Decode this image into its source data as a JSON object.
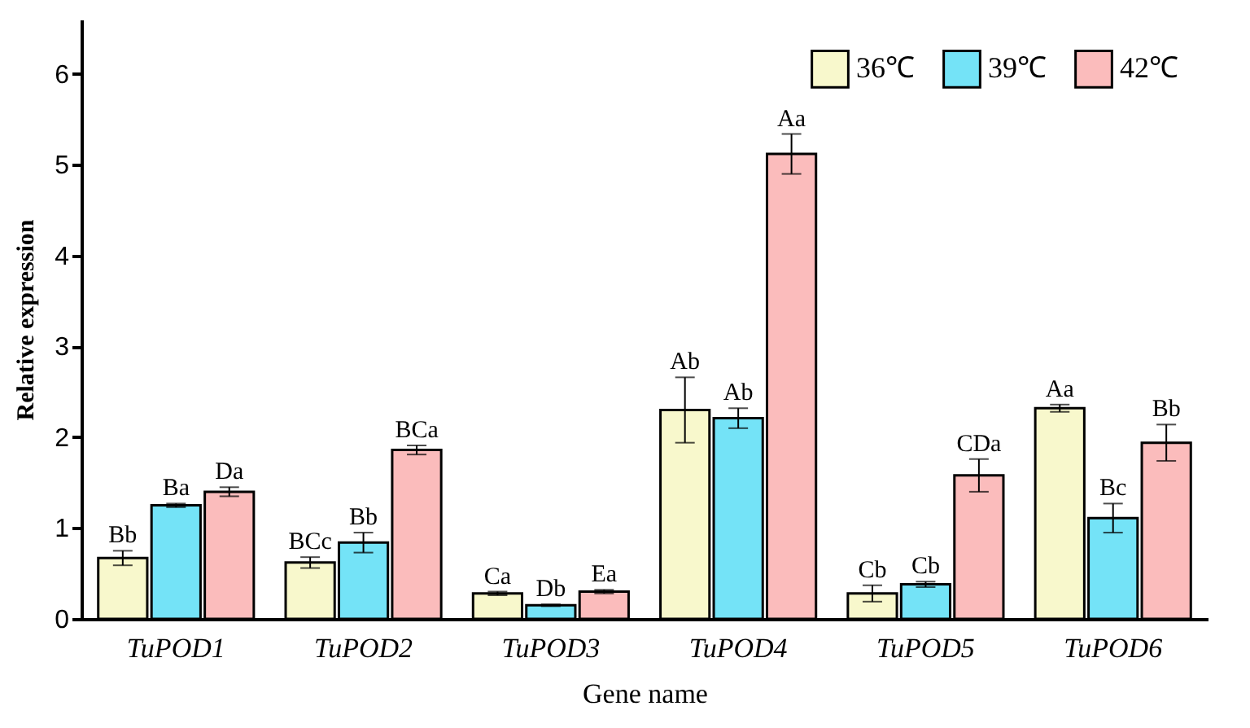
{
  "chart_data": {
    "type": "bar",
    "xlabel": "Gene name",
    "ylabel": "Relative expression",
    "categories": [
      "TuPOD1",
      "TuPOD2",
      "TuPOD3",
      "TuPOD4",
      "TuPOD5",
      "TuPOD6"
    ],
    "series": [
      {
        "name": "36℃",
        "color": "#f8f8cc",
        "values": [
          0.67,
          0.62,
          0.28,
          2.3,
          0.28,
          2.32
        ],
        "errors": [
          0.08,
          0.06,
          0.02,
          0.36,
          0.09,
          0.04
        ]
      },
      {
        "name": "39℃",
        "color": "#74e3f7",
        "values": [
          1.25,
          0.84,
          0.15,
          2.21,
          0.38,
          1.11
        ],
        "errors": [
          0.02,
          0.11,
          0.01,
          0.11,
          0.03,
          0.16
        ]
      },
      {
        "name": "42℃",
        "color": "#fbbcbc",
        "values": [
          1.4,
          1.86,
          0.3,
          5.12,
          1.58,
          1.94
        ],
        "errors": [
          0.05,
          0.05,
          0.02,
          0.22,
          0.18,
          0.2
        ]
      }
    ],
    "annotations": [
      "Bb",
      "Ba",
      "Da",
      "BCc",
      "Bb",
      "BCa",
      "Ca",
      "Db",
      "Ea",
      "Ab",
      "Ab",
      "Aa",
      "Cb",
      "Cb",
      "CDa",
      "Aa",
      "Bc",
      "Bb"
    ],
    "ylim": [
      0,
      6.6
    ],
    "yticks": [
      0,
      1,
      2,
      3,
      4,
      5,
      6
    ],
    "grid": false,
    "legend": "top right"
  }
}
